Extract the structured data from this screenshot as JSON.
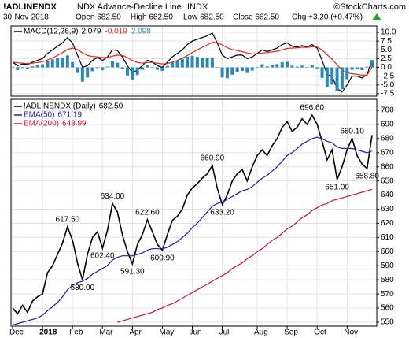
{
  "header": {
    "symbol": "!ADLINENDX",
    "name": "NDX Advance-Decline Line",
    "exchange": "INDX",
    "source": "©StockCharts.com",
    "date": "30-Nov-2018",
    "open": "Open 682.50",
    "high": "High 682.50",
    "low": "Low 682.50",
    "close": "Close 682.50",
    "change": "Chg +3.20 (+0.47%)"
  },
  "chart_data": [
    {
      "type": "line",
      "title": "MACD(12,26,9)",
      "ylim": [
        -8.2,
        11.8
      ],
      "yticks": [
        {
          "value": 10,
          "label": "10.0"
        },
        7.5,
        {
          "value": 5,
          "label": "5.0"
        },
        2.5,
        {
          "value": 0,
          "label": "0.0"
        },
        -2.5,
        {
          "value": -5,
          "label": "-5.0"
        },
        -7.5
      ],
      "grid": true,
      "series": [
        {
          "type": "line",
          "color": "#000000",
          "legend_value": "2.079",
          "values": [
            1.5,
            0.5,
            1.0,
            0.8,
            1.5,
            2.0,
            2.5,
            4.0,
            5.0,
            6.0,
            7.0,
            8.5,
            7.0,
            3.5,
            0.0,
            0.5,
            2.0,
            2.8,
            2.0,
            3.0,
            5.0,
            4.8,
            3.0,
            0.5,
            -1.5,
            -0.8,
            0.5,
            2.0,
            1.5,
            0.5,
            0.0,
            1.5,
            3.0,
            4.0,
            5.0,
            6.5,
            7.5,
            8.0,
            8.5,
            9.0,
            9.8,
            7.0,
            3.5,
            2.5,
            3.0,
            3.5,
            3.5,
            2.5,
            3.0,
            4.0,
            5.0,
            4.5,
            5.0,
            5.5,
            6.5,
            7.0,
            6.0,
            5.8,
            6.2,
            5.8,
            6.5,
            5.5,
            2.0,
            -2.0,
            -2.5,
            -6.0,
            -7.0,
            -5.0,
            -2.5,
            -2.5,
            -3.0,
            -2.0,
            2.079
          ]
        },
        {
          "type": "line",
          "color": "#e8231c",
          "legend_value": "-0.019",
          "values": [
            1.5,
            1.3,
            1.2,
            1.1,
            1.2,
            1.4,
            1.6,
            2.1,
            2.7,
            3.4,
            4.2,
            5.1,
            5.5,
            5.1,
            4.1,
            3.4,
            3.1,
            3.0,
            2.8,
            2.8,
            3.2,
            3.5,
            3.4,
            2.8,
            2.0,
            1.4,
            1.2,
            1.4,
            1.4,
            1.2,
            1.0,
            1.1,
            1.5,
            2.0,
            2.6,
            3.4,
            4.2,
            5.0,
            5.7,
            6.4,
            7.1,
            7.1,
            6.4,
            5.6,
            5.1,
            4.8,
            4.5,
            4.1,
            3.9,
            3.9,
            4.1,
            4.2,
            4.4,
            4.6,
            5.0,
            5.4,
            5.5,
            5.6,
            5.7,
            5.7,
            5.9,
            5.8,
            5.0,
            3.6,
            2.4,
            0.7,
            -0.8,
            -1.6,
            -1.8,
            -2.0,
            -2.2,
            -2.2,
            -0.019
          ]
        },
        {
          "type": "bar",
          "color": "#2b87b5",
          "legend_value": "2.098",
          "values": [
            0,
            -0.8,
            -0.2,
            -0.3,
            0.3,
            0.6,
            0.9,
            1.9,
            2.3,
            2.6,
            2.8,
            3.4,
            1.5,
            -1.6,
            -4.1,
            -2.9,
            -1.1,
            -0.2,
            -0.8,
            0.2,
            1.8,
            1.3,
            -0.4,
            -2.3,
            -3.5,
            -2.2,
            -0.7,
            0.6,
            0.1,
            -0.7,
            -1.0,
            0.4,
            1.5,
            2.0,
            2.4,
            3.1,
            3.3,
            3.0,
            2.8,
            2.6,
            2.7,
            -0.1,
            -2.9,
            -3.1,
            -2.1,
            -1.3,
            -1.0,
            -1.6,
            -0.9,
            0.1,
            0.9,
            0.3,
            0.6,
            0.9,
            1.5,
            1.6,
            0.5,
            0.2,
            0.5,
            0.1,
            0.6,
            -0.3,
            -3.0,
            -5.6,
            -4.9,
            -6.7,
            -6.2,
            -3.4,
            -0.7,
            -0.5,
            -0.8,
            0.2,
            2.098
          ]
        }
      ]
    },
    {
      "type": "line",
      "ylim": [
        547.2,
        707.8
      ],
      "yticks": [
        550,
        560,
        570,
        580,
        590,
        600,
        610,
        620,
        630,
        640,
        650,
        660,
        670,
        680,
        690,
        700
      ],
      "grid": true,
      "categories": [
        "Dec",
        null,
        null,
        null,
        null,
        null,
        "2018",
        null,
        null,
        null,
        null,
        null,
        "Feb",
        null,
        null,
        null,
        null,
        null,
        "Mar",
        null,
        null,
        null,
        null,
        null,
        "Apr",
        null,
        null,
        null,
        null,
        null,
        "May",
        null,
        null,
        null,
        null,
        null,
        "Jun",
        null,
        null,
        null,
        null,
        null,
        "Jul",
        null,
        null,
        null,
        null,
        null,
        null,
        "Aug",
        null,
        null,
        null,
        null,
        null,
        "Sep",
        null,
        null,
        null,
        null,
        null,
        "Oct",
        null,
        null,
        null,
        null,
        null,
        "Nov",
        null,
        null,
        null,
        null,
        null
      ],
      "series": [
        {
          "name": "!ADLINENDX (Daily)",
          "color": "#000000",
          "legend_value": "682.50",
          "values": [
            560,
            556,
            562,
            557,
            565,
            568,
            570,
            585,
            590,
            598,
            606,
            617.5,
            608,
            592,
            580,
            598,
            610,
            614,
            602.4,
            615,
            634,
            628,
            612,
            600,
            591.3,
            605,
            612,
            622.6,
            614,
            605,
            600.9,
            612,
            622,
            625,
            630,
            640,
            645,
            648,
            652,
            655,
            660.9,
            645,
            633.2,
            640,
            650,
            655,
            658,
            650,
            660,
            668,
            672,
            668,
            675,
            680,
            688,
            692,
            685,
            688,
            694,
            690,
            696.6,
            690,
            678,
            665,
            672,
            651,
            660,
            672,
            680.1,
            668,
            662,
            658.8,
            682.5
          ],
          "value_labels": [
            null,
            null,
            null,
            null,
            null,
            null,
            null,
            null,
            null,
            null,
            null,
            "617.50",
            null,
            null,
            "580.00",
            null,
            null,
            null,
            "602.40",
            null,
            "634.00",
            null,
            null,
            null,
            "591.30",
            null,
            null,
            "622.60",
            null,
            null,
            "600.90",
            null,
            null,
            null,
            null,
            null,
            null,
            null,
            null,
            null,
            "660.90",
            null,
            "633.20",
            null,
            null,
            null,
            null,
            null,
            null,
            null,
            null,
            null,
            null,
            null,
            null,
            null,
            null,
            null,
            null,
            null,
            "696.60",
            null,
            null,
            null,
            null,
            "651.00",
            null,
            null,
            "680.10",
            null,
            null,
            "658.80",
            null
          ]
        },
        {
          "name": "EMA(50)",
          "color": "#1c1c9c",
          "legend_value": "671.19",
          "values": [
            548,
            549,
            550,
            551,
            552,
            553,
            555,
            558,
            561,
            564,
            568,
            573,
            576,
            578,
            579,
            581,
            584,
            586,
            588,
            590,
            594,
            596,
            597,
            597,
            597,
            598,
            599,
            601,
            602,
            602,
            602,
            603,
            605,
            607,
            610,
            613,
            617,
            620,
            624,
            628,
            632,
            634,
            635,
            637,
            639,
            641,
            643,
            644,
            646,
            649,
            652,
            654,
            657,
            660,
            664,
            668,
            670,
            673,
            676,
            678,
            680,
            681,
            680,
            678,
            677,
            674,
            673,
            673,
            673,
            672,
            671,
            670,
            671.19
          ]
        },
        {
          "name": "EMA(200)",
          "color": "#c8143c",
          "legend_value": "643.99",
          "values": [
            null,
            null,
            null,
            null,
            null,
            null,
            null,
            null,
            null,
            null,
            null,
            null,
            null,
            null,
            null,
            null,
            null,
            null,
            null,
            null,
            null,
            550,
            551,
            552,
            553,
            554,
            555,
            556,
            557,
            559,
            560,
            562,
            563,
            565,
            567,
            569,
            571,
            573,
            575,
            577,
            579,
            581,
            583,
            585,
            588,
            590,
            592,
            595,
            597,
            600,
            602,
            605,
            608,
            610,
            613,
            616,
            618,
            621,
            624,
            626,
            629,
            631,
            633,
            634,
            636,
            637,
            638,
            639,
            640,
            641,
            642,
            643,
            643.99
          ]
        }
      ]
    }
  ]
}
